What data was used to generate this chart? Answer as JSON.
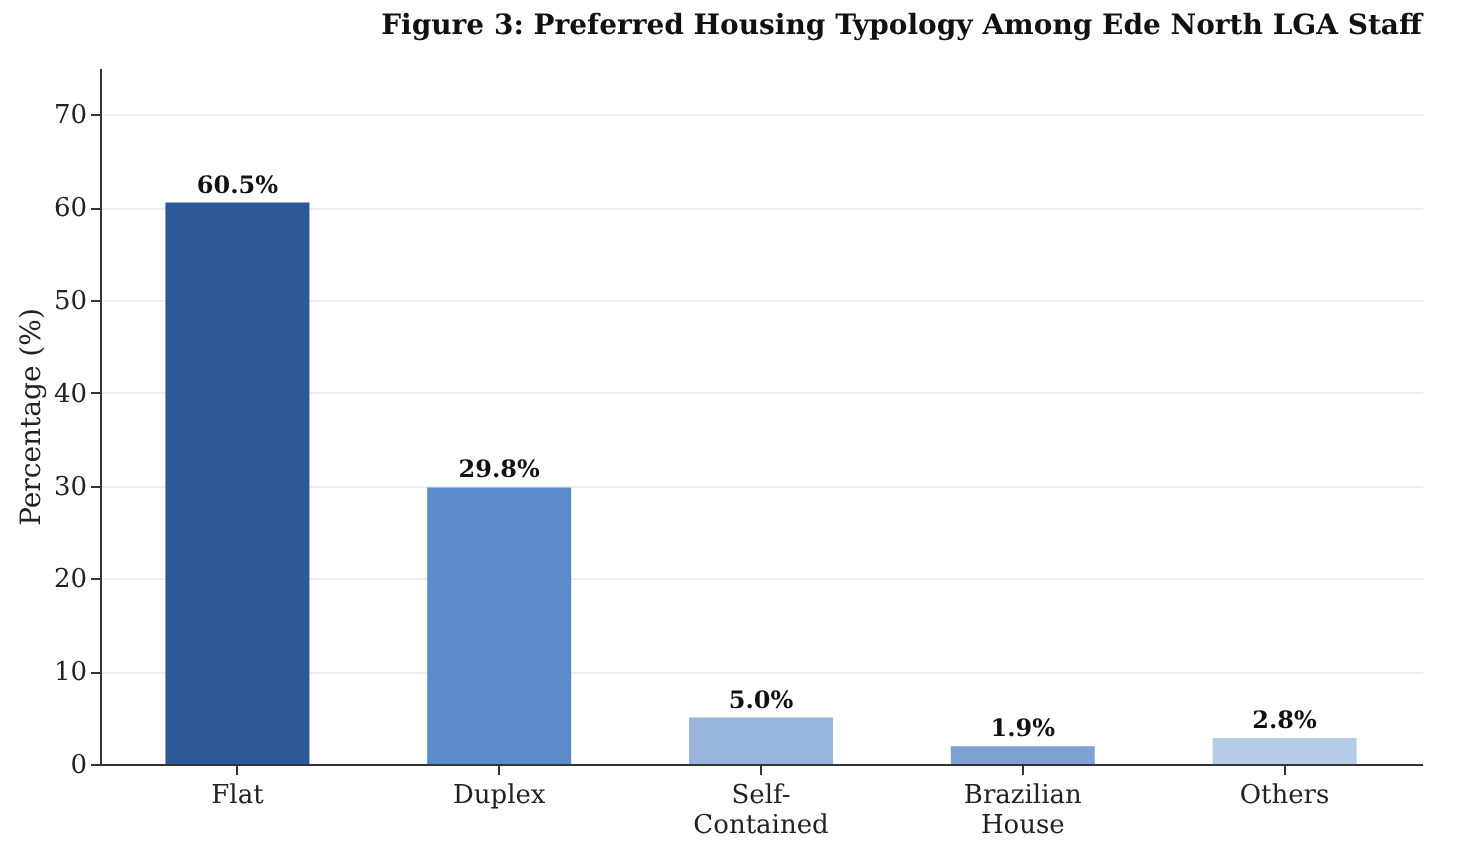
{
  "chart_data": {
    "type": "bar",
    "title": "Figure 3: Preferred Housing Typology Among Ede North LGA Staff",
    "ylabel": "Percentage (%)",
    "categories": [
      "Flat",
      "Duplex",
      "Self-Contained",
      "Brazilian House",
      "Others"
    ],
    "values": [
      60.5,
      29.8,
      5.0,
      1.9,
      2.8
    ],
    "colors": [
      "#2c5a99",
      "#5a8ccb",
      "#98b5db",
      "#7ea3d3",
      "#b5cde8"
    ],
    "value_labels": [
      "60.5%",
      "29.8%",
      "5.0%",
      "1.9%",
      "2.8%"
    ],
    "ylim": [
      0,
      75
    ],
    "yticks": [
      0,
      10,
      20,
      30,
      40,
      50,
      60,
      70
    ],
    "grid": "y"
  }
}
